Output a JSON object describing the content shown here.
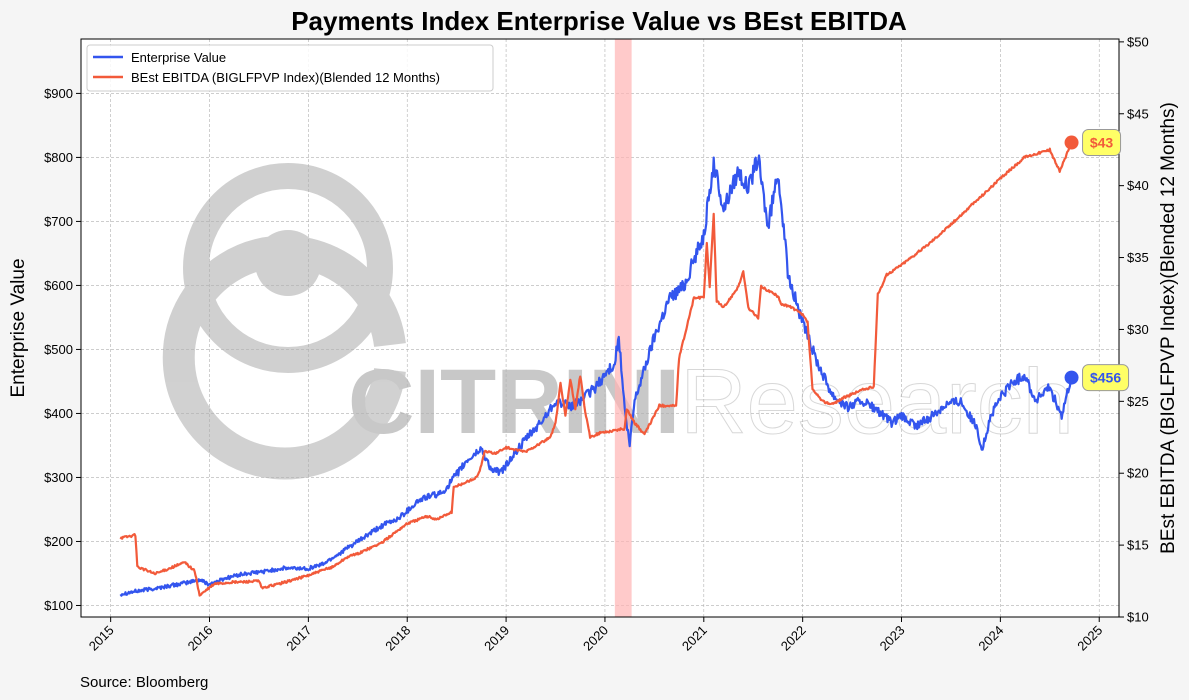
{
  "chart_data": {
    "type": "line",
    "title": "Payments Index Enterprise Value vs BEst EBITDA",
    "ylabel_left": "Enterprise Value",
    "ylabel_right": "BEst EBITDA (BIGLFPVP Index)(Blended 12 Months)",
    "source": "Source: Bloomberg",
    "watermark": {
      "bold": "CITRINI",
      "light": "Research"
    },
    "x_range": [
      2014.7,
      2025.2
    ],
    "x_ticks": [
      {
        "v": 2015,
        "label": "2015"
      },
      {
        "v": 2016,
        "label": "2016"
      },
      {
        "v": 2017,
        "label": "2017"
      },
      {
        "v": 2018,
        "label": "2018"
      },
      {
        "v": 2019,
        "label": "2019"
      },
      {
        "v": 2020,
        "label": "2020"
      },
      {
        "v": 2021,
        "label": "2021"
      },
      {
        "v": 2022,
        "label": "2022"
      },
      {
        "v": 2023,
        "label": "2023"
      },
      {
        "v": 2024,
        "label": "2024"
      },
      {
        "v": 2025,
        "label": "2025"
      }
    ],
    "y_left": {
      "range": [
        82,
        985
      ],
      "ticks": [
        {
          "v": 100,
          "label": "$100"
        },
        {
          "v": 200,
          "label": "$200"
        },
        {
          "v": 300,
          "label": "$300"
        },
        {
          "v": 400,
          "label": "$400"
        },
        {
          "v": 500,
          "label": "$500"
        },
        {
          "v": 600,
          "label": "$600"
        },
        {
          "v": 700,
          "label": "$700"
        },
        {
          "v": 800,
          "label": "$800"
        },
        {
          "v": 900,
          "label": "$900"
        }
      ]
    },
    "y_right": {
      "range": [
        10,
        50.2
      ],
      "ticks": [
        {
          "v": 10,
          "label": "$10"
        },
        {
          "v": 15,
          "label": "$15"
        },
        {
          "v": 20,
          "label": "$20"
        },
        {
          "v": 25,
          "label": "$25"
        },
        {
          "v": 30,
          "label": "$30"
        },
        {
          "v": 35,
          "label": "$35"
        },
        {
          "v": 40,
          "label": "$40"
        },
        {
          "v": 45,
          "label": "$45"
        },
        {
          "v": 50,
          "label": "$50"
        }
      ]
    },
    "grid": true,
    "legend_position": "top-left",
    "shaded_band": {
      "x_start": 2020.1,
      "x_end": 2020.27,
      "color": "#ffb3b3"
    },
    "series": [
      {
        "name": "Enterprise Value",
        "axis": "left",
        "color": "#3355ee",
        "last_label": "$456",
        "x": [
          2015.1,
          2015.25,
          2015.5,
          2015.75,
          2015.9,
          2016.0,
          2016.15,
          2016.3,
          2016.5,
          2016.75,
          2017.0,
          2017.15,
          2017.3,
          2017.5,
          2017.75,
          2017.9,
          2018.0,
          2018.1,
          2018.2,
          2018.35,
          2018.45,
          2018.6,
          2018.75,
          2018.85,
          2018.95,
          2019.05,
          2019.2,
          2019.35,
          2019.5,
          2019.65,
          2019.75,
          2019.9,
          2020.0,
          2020.1,
          2020.14,
          2020.2,
          2020.25,
          2020.3,
          2020.4,
          2020.5,
          2020.65,
          2020.8,
          2020.9,
          2021.0,
          2021.1,
          2021.2,
          2021.35,
          2021.45,
          2021.55,
          2021.65,
          2021.75,
          2021.85,
          2022.0,
          2022.15,
          2022.3,
          2022.45,
          2022.6,
          2022.75,
          2022.9,
          2023.0,
          2023.15,
          2023.3,
          2023.45,
          2023.6,
          2023.75,
          2023.82,
          2023.9,
          2024.0,
          2024.1,
          2024.25,
          2024.35,
          2024.5,
          2024.62,
          2024.72
        ],
        "values": [
          118,
          122,
          128,
          135,
          140,
          133,
          142,
          148,
          152,
          158,
          158,
          165,
          180,
          200,
          225,
          235,
          248,
          262,
          270,
          275,
          295,
          325,
          345,
          312,
          308,
          330,
          360,
          385,
          420,
          410,
          420,
          440,
          460,
          480,
          520,
          405,
          350,
          420,
          470,
          520,
          580,
          600,
          640,
          680,
          790,
          720,
          780,
          750,
          800,
          690,
          780,
          620,
          540,
          480,
          430,
          410,
          420,
          405,
          385,
          395,
          380,
          395,
          415,
          420,
          380,
          345,
          395,
          425,
          445,
          460,
          420,
          440,
          395,
          456
        ]
      },
      {
        "name": "BEst EBITDA (BIGLFPVP Index)(Blended 12 Months)",
        "axis": "right",
        "color": "#f25a3a",
        "last_label": "$43",
        "x": [
          2015.1,
          2015.25,
          2015.27,
          2015.45,
          2015.6,
          2015.75,
          2015.85,
          2015.9,
          2016.05,
          2016.2,
          2016.5,
          2016.53,
          2016.75,
          2017.0,
          2017.25,
          2017.4,
          2017.5,
          2017.75,
          2017.9,
          2018.0,
          2018.2,
          2018.3,
          2018.45,
          2018.47,
          2018.7,
          2018.75,
          2018.78,
          2018.9,
          2019.0,
          2019.1,
          2019.2,
          2019.45,
          2019.5,
          2019.55,
          2019.6,
          2019.65,
          2019.7,
          2019.75,
          2019.8,
          2019.85,
          2019.95,
          2020.2,
          2020.22,
          2020.3,
          2020.4,
          2020.55,
          2020.72,
          2020.75,
          2020.9,
          2021.0,
          2021.03,
          2021.06,
          2021.1,
          2021.13,
          2021.2,
          2021.25,
          2021.35,
          2021.4,
          2021.45,
          2021.55,
          2021.58,
          2021.75,
          2021.78,
          2021.9,
          2022.0,
          2022.05,
          2022.1,
          2022.2,
          2022.3,
          2022.4,
          2022.5,
          2022.6,
          2022.72,
          2022.76,
          2022.8,
          2022.85,
          2023.0,
          2023.25,
          2023.5,
          2023.75,
          2024.0,
          2024.25,
          2024.4,
          2024.5,
          2024.6,
          2024.72
        ],
        "values": [
          15.5,
          15.7,
          13.5,
          13.0,
          13.4,
          13.8,
          13.2,
          11.5,
          12.3,
          12.4,
          12.5,
          12.0,
          12.4,
          12.9,
          13.5,
          14.2,
          14.4,
          15.2,
          16.0,
          16.5,
          17.0,
          16.8,
          17.3,
          19.0,
          19.7,
          20.5,
          21.5,
          21.4,
          21.8,
          21.6,
          21.5,
          22.5,
          23.5,
          26.2,
          24.0,
          26.5,
          24.5,
          26.8,
          24.3,
          22.5,
          22.8,
          23.1,
          24.5,
          23.5,
          22.7,
          24.7,
          24.7,
          28.0,
          32.2,
          32.2,
          36.0,
          33.0,
          38.0,
          32.0,
          31.5,
          32.0,
          33.0,
          34.0,
          31.5,
          30.8,
          33.0,
          32.3,
          31.8,
          31.5,
          31.0,
          30.5,
          25.8,
          25.0,
          24.8,
          25.2,
          25.5,
          25.8,
          26.0,
          32.5,
          33.0,
          33.8,
          34.5,
          35.8,
          37.3,
          38.9,
          40.5,
          42.0,
          42.3,
          42.5,
          41.0,
          43.0
        ]
      }
    ]
  }
}
